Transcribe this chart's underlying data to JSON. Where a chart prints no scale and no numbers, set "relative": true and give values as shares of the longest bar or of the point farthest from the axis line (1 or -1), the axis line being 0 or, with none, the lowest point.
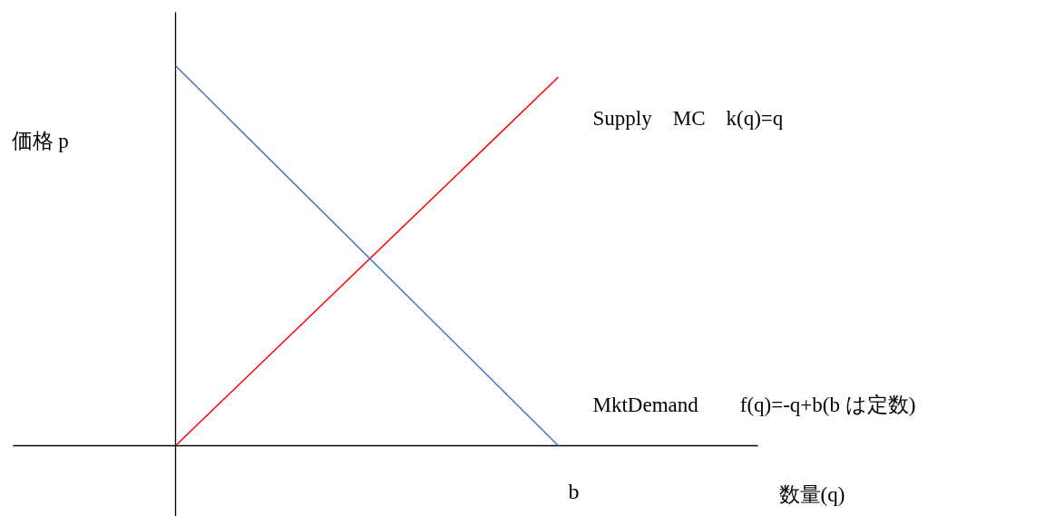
{
  "chart_data": {
    "type": "line",
    "relative": true,
    "xlabel": "数量(q)",
    "ylabel": "価格 p",
    "line_style": "solid",
    "categories": [
      null,
      null
    ],
    "annotations": [
      "b"
    ],
    "series": [
      {
        "name": "Supply　MC　k(q)=q",
        "color": "#ff0000",
        "values": [
          0,
          0.97
        ]
      },
      {
        "name": "MktDemand　　f(q)=-q+b(b は定数)",
        "color": "#4472c4",
        "values": [
          1,
          0
        ]
      }
    ]
  }
}
